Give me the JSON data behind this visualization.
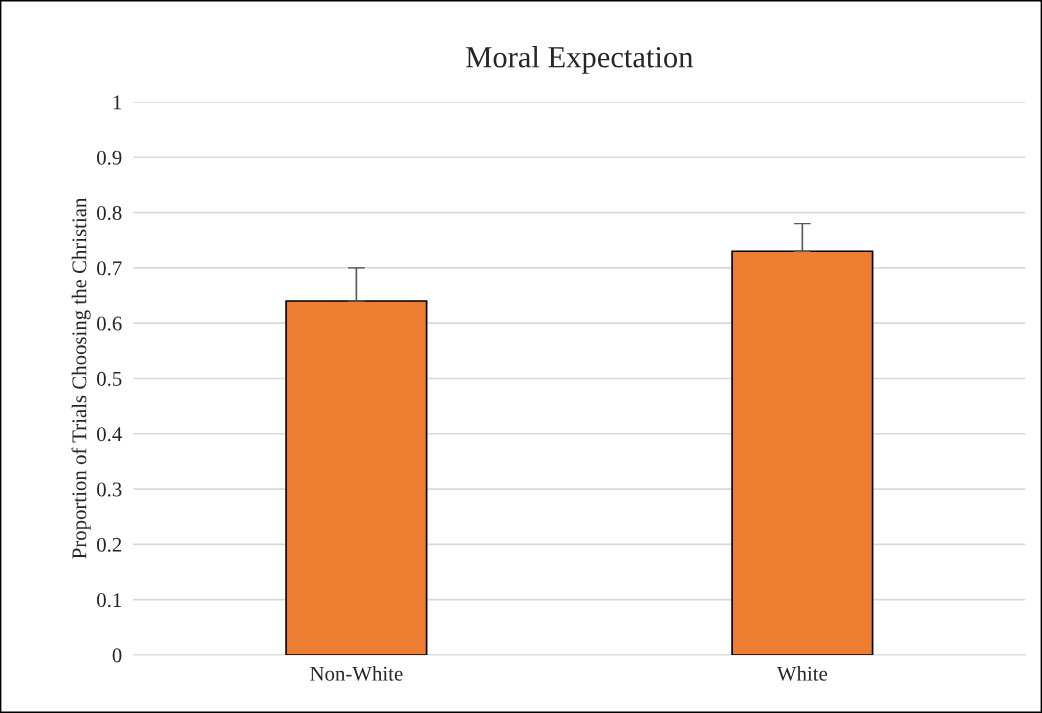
{
  "chart_data": {
    "type": "bar",
    "title": "Moral Expectation",
    "ylabel": "Proportion of Trials Choosing the Christian",
    "categories": [
      "Non-White",
      "White"
    ],
    "values": [
      0.64,
      0.73
    ],
    "errors": [
      [
        0.64,
        0.7
      ],
      [
        0.73,
        0.78
      ]
    ],
    "color": "#ed7d31",
    "ylim": [
      0,
      1
    ],
    "yticks": [
      0,
      0.1,
      0.2,
      0.3,
      0.4,
      0.5,
      0.6,
      0.7,
      0.8,
      0.9,
      1
    ],
    "grid": "y",
    "legend": false
  }
}
